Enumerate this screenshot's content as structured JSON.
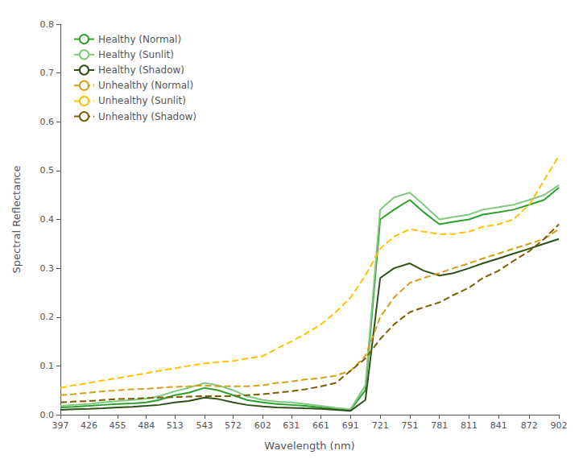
{
  "chart_data": {
    "type": "line",
    "xlabel": "Wavelength (nm)",
    "ylabel": "Spectral Reflectance",
    "x": [
      397,
      410,
      426,
      440,
      455,
      470,
      484,
      497,
      513,
      527,
      543,
      557,
      572,
      586,
      602,
      616,
      631,
      645,
      661,
      676,
      691,
      706,
      721,
      735,
      751,
      765,
      781,
      795,
      811,
      825,
      841,
      856,
      872,
      887,
      902
    ],
    "series": [
      {
        "name": "Healthy (Normal)",
        "color": "#2ca02c",
        "line_style": "solid",
        "values": [
          0.015,
          0.016,
          0.018,
          0.02,
          0.022,
          0.023,
          0.025,
          0.03,
          0.04,
          0.045,
          0.055,
          0.05,
          0.04,
          0.03,
          0.025,
          0.022,
          0.02,
          0.018,
          0.015,
          0.012,
          0.01,
          0.05,
          0.4,
          0.42,
          0.44,
          0.415,
          0.39,
          0.395,
          0.4,
          0.41,
          0.415,
          0.42,
          0.43,
          0.44,
          0.465
        ]
      },
      {
        "name": "Healthy (Sunlit)",
        "color": "#7fc97f",
        "line_style": "solid",
        "values": [
          0.018,
          0.02,
          0.022,
          0.025,
          0.028,
          0.03,
          0.033,
          0.038,
          0.048,
          0.055,
          0.065,
          0.06,
          0.05,
          0.038,
          0.03,
          0.027,
          0.025,
          0.022,
          0.018,
          0.014,
          0.011,
          0.06,
          0.42,
          0.445,
          0.455,
          0.43,
          0.4,
          0.405,
          0.41,
          0.42,
          0.425,
          0.43,
          0.44,
          0.45,
          0.47
        ]
      },
      {
        "name": "Healthy (Shadow)",
        "color": "#2d5016",
        "line_style": "solid",
        "values": [
          0.01,
          0.011,
          0.012,
          0.013,
          0.015,
          0.016,
          0.018,
          0.02,
          0.025,
          0.028,
          0.035,
          0.032,
          0.025,
          0.02,
          0.017,
          0.015,
          0.014,
          0.013,
          0.012,
          0.01,
          0.008,
          0.03,
          0.28,
          0.3,
          0.31,
          0.295,
          0.285,
          0.29,
          0.3,
          0.31,
          0.32,
          0.33,
          0.34,
          0.35,
          0.36
        ]
      },
      {
        "name": "Unhealthy (Normal)",
        "color": "#d4a017",
        "line_style": "dashed",
        "values": [
          0.04,
          0.042,
          0.045,
          0.048,
          0.05,
          0.052,
          0.053,
          0.055,
          0.057,
          0.058,
          0.06,
          0.058,
          0.058,
          0.058,
          0.06,
          0.065,
          0.068,
          0.072,
          0.075,
          0.08,
          0.09,
          0.12,
          0.2,
          0.24,
          0.27,
          0.28,
          0.29,
          0.3,
          0.31,
          0.32,
          0.33,
          0.34,
          0.35,
          0.36,
          0.38
        ]
      },
      {
        "name": "Unhealthy (Sunlit)",
        "color": "#ffc200",
        "line_style": "dashed",
        "values": [
          0.055,
          0.06,
          0.065,
          0.07,
          0.075,
          0.08,
          0.085,
          0.09,
          0.095,
          0.1,
          0.105,
          0.108,
          0.11,
          0.115,
          0.12,
          0.135,
          0.15,
          0.165,
          0.185,
          0.21,
          0.24,
          0.285,
          0.34,
          0.365,
          0.38,
          0.375,
          0.37,
          0.37,
          0.375,
          0.385,
          0.39,
          0.4,
          0.43,
          0.48,
          0.53
        ]
      },
      {
        "name": "Unhealthy (Shadow)",
        "color": "#7b5c00",
        "line_style": "dashed",
        "values": [
          0.025,
          0.027,
          0.028,
          0.03,
          0.032,
          0.033,
          0.034,
          0.035,
          0.036,
          0.037,
          0.038,
          0.038,
          0.038,
          0.04,
          0.042,
          0.045,
          0.048,
          0.052,
          0.058,
          0.065,
          0.09,
          0.115,
          0.155,
          0.185,
          0.21,
          0.22,
          0.23,
          0.245,
          0.26,
          0.28,
          0.295,
          0.315,
          0.335,
          0.36,
          0.39
        ]
      }
    ],
    "xlim": [
      397,
      902
    ],
    "ylim": [
      0,
      0.8
    ],
    "xticks": [
      397,
      426,
      455,
      484,
      513,
      543,
      572,
      602,
      631,
      661,
      691,
      721,
      751,
      781,
      811,
      841,
      872,
      902
    ],
    "yticks": [
      {
        "value": 0.0,
        "label": "0.0"
      },
      0.1,
      0.2,
      0.3,
      0.4,
      0.5,
      0.6,
      0.7,
      0.8
    ],
    "legend": "upper left",
    "grid": false
  }
}
